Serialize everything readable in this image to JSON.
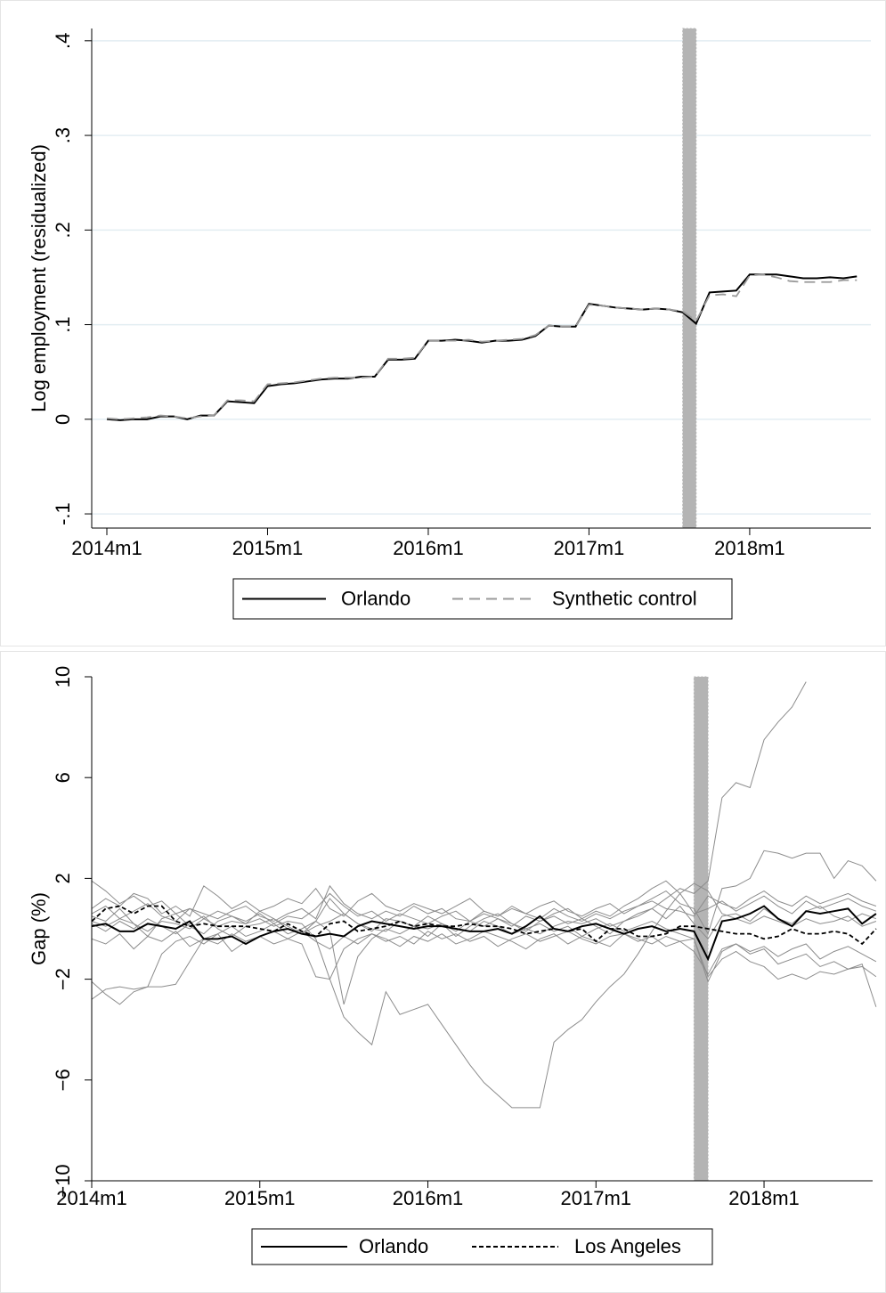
{
  "chart_data": [
    {
      "type": "line",
      "y_label": "Log employment (residualized)",
      "categories": [
        "2014m1",
        "2014m2",
        "2014m3",
        "2014m4",
        "2014m5",
        "2014m6",
        "2014m7",
        "2014m8",
        "2014m9",
        "2014m10",
        "2014m11",
        "2014m12",
        "2015m1",
        "2015m2",
        "2015m3",
        "2015m4",
        "2015m5",
        "2015m6",
        "2015m7",
        "2015m8",
        "2015m9",
        "2015m10",
        "2015m11",
        "2015m12",
        "2016m1",
        "2016m2",
        "2016m3",
        "2016m4",
        "2016m5",
        "2016m6",
        "2016m7",
        "2016m8",
        "2016m9",
        "2016m10",
        "2016m11",
        "2016m12",
        "2017m1",
        "2017m2",
        "2017m3",
        "2017m4",
        "2017m5",
        "2017m6",
        "2017m7",
        "2017m8",
        "2017m9",
        "2017m10",
        "2017m11",
        "2017m12",
        "2018m1",
        "2018m2",
        "2018m3",
        "2018m4",
        "2018m5",
        "2018m6",
        "2018m7",
        "2018m8",
        "2018m9"
      ],
      "series": [
        {
          "name": "Orlando",
          "color": "#000000",
          "style": "solid",
          "values": [
            0.0,
            -0.001,
            0.0,
            0.0,
            0.003,
            0.003,
            0.0,
            0.004,
            0.004,
            0.019,
            0.018,
            0.017,
            0.035,
            0.037,
            0.038,
            0.04,
            0.042,
            0.043,
            0.043,
            0.045,
            0.045,
            0.063,
            0.063,
            0.064,
            0.083,
            0.083,
            0.084,
            0.083,
            0.081,
            0.083,
            0.083,
            0.084,
            0.088,
            0.099,
            0.098,
            0.098,
            0.122,
            0.12,
            0.118,
            0.117,
            0.116,
            0.117,
            0.116,
            0.113,
            0.101,
            0.134,
            0.135,
            0.136,
            0.153,
            0.153,
            0.153,
            0.151,
            0.149,
            0.149,
            0.15,
            0.149,
            0.151
          ]
        },
        {
          "name": "Synthetic control",
          "color": "#999999",
          "style": "dashed",
          "values": [
            0.001,
            0.0,
            0.001,
            0.002,
            0.004,
            0.003,
            0.001,
            0.003,
            0.004,
            0.02,
            0.02,
            0.019,
            0.037,
            0.038,
            0.039,
            0.041,
            0.043,
            0.044,
            0.044,
            0.044,
            0.045,
            0.064,
            0.064,
            0.065,
            0.083,
            0.083,
            0.083,
            0.084,
            0.082,
            0.083,
            0.084,
            0.085,
            0.089,
            0.099,
            0.098,
            0.098,
            0.121,
            0.12,
            0.118,
            0.117,
            0.116,
            0.117,
            0.116,
            0.114,
            0.104,
            0.131,
            0.132,
            0.13,
            0.152,
            0.153,
            0.15,
            0.146,
            0.145,
            0.145,
            0.145,
            0.147,
            0.147
          ]
        }
      ],
      "highlight": [
        "2017m8",
        "2017m9"
      ],
      "highlight_color": "#b4b4b4",
      "ylim": [
        -0.115,
        0.413
      ],
      "yticks": [
        {
          "value": -0.1,
          "label": "-.1"
        },
        0,
        {
          "value": 0.1,
          "label": ".1"
        },
        {
          "value": 0.2,
          "label": ".2"
        },
        {
          "value": 0.3,
          "label": ".3"
        },
        {
          "value": 0.4,
          "label": ".4"
        }
      ],
      "xticks": [
        "2014m1",
        "2015m1",
        "2016m1",
        "2017m1",
        "2018m1"
      ],
      "grid": true
    },
    {
      "type": "line",
      "y_label": "Gap (%)",
      "categories": [
        "2014m1",
        "2014m2",
        "2014m3",
        "2014m4",
        "2014m5",
        "2014m6",
        "2014m7",
        "2014m8",
        "2014m9",
        "2014m10",
        "2014m11",
        "2014m12",
        "2015m1",
        "2015m2",
        "2015m3",
        "2015m4",
        "2015m5",
        "2015m6",
        "2015m7",
        "2015m8",
        "2015m9",
        "2015m10",
        "2015m11",
        "2015m12",
        "2016m1",
        "2016m2",
        "2016m3",
        "2016m4",
        "2016m5",
        "2016m6",
        "2016m7",
        "2016m8",
        "2016m9",
        "2016m10",
        "2016m11",
        "2016m12",
        "2017m1",
        "2017m2",
        "2017m3",
        "2017m4",
        "2017m5",
        "2017m6",
        "2017m7",
        "2017m8",
        "2017m9",
        "2017m10",
        "2017m11",
        "2017m12",
        "2018m1",
        "2018m2",
        "2018m3",
        "2018m4",
        "2018m5",
        "2018m6",
        "2018m7",
        "2018m8",
        "2018m9"
      ],
      "placebo_color": "#8c8c8c",
      "placebos": [
        {
          "values": [
            0.5,
            0.3,
            0.8,
            0.2,
            -0.3,
            0.4,
            0.6,
            0.1,
            -0.2,
            0.3,
            0.5,
            0.2,
            0.7,
            0.4,
            0.1,
            -0.2,
            0.3,
            1.2,
            0.6,
            0.2,
            -0.1,
            0.4,
            0.3,
            0.1,
            0.5,
            0.2,
            -0.3,
            0.1,
            0.4,
            0.6,
            0.2,
            -0.1,
            0.3,
            0.5,
            0.2,
            0.4,
            0.1,
            -0.2,
            0.3,
            0.6,
            0.8,
            0.4,
            0.9,
            0.2,
            -0.4,
            0.5,
            0.6,
            0.3,
            0.8,
            0.4,
            0.2,
            0.7,
            0.9,
            0.5,
            0.3,
            0.6,
            0.4
          ]
        },
        {
          "values": [
            -0.4,
            -0.6,
            -0.2,
            -0.8,
            -0.3,
            -0.5,
            -0.1,
            -0.7,
            -0.4,
            -0.2,
            -0.9,
            -0.5,
            -0.3,
            -0.6,
            -0.4,
            -0.1,
            -0.5,
            -0.8,
            -0.3,
            -0.6,
            -0.2,
            -0.4,
            -0.7,
            -0.3,
            -0.5,
            -0.2,
            -0.6,
            -0.4,
            -0.1,
            -0.3,
            -0.5,
            -0.8,
            -0.4,
            -0.2,
            -0.6,
            -0.3,
            -0.5,
            -0.7,
            -0.2,
            -0.4,
            -0.6,
            -0.3,
            -0.5,
            -0.9,
            -1.8,
            -0.8,
            -0.6,
            -0.9,
            -0.7,
            -1.1,
            -0.8,
            -0.6,
            -1.2,
            -0.9,
            -0.7,
            -1.0,
            -1.3
          ]
        },
        {
          "values": [
            1.9,
            1.5,
            1.0,
            1.3,
            0.9,
            1.1,
            0.6,
            0.8,
            0.4,
            0.7,
            0.5,
            0.3,
            0.6,
            0.2,
            0.5,
            0.4,
            0.8,
            1.4,
            0.9,
            0.5,
            0.7,
            0.3,
            0.6,
            0.4,
            0.2,
            0.5,
            0.7,
            0.3,
            0.6,
            0.4,
            0.1,
            0.5,
            0.3,
            0.6,
            0.8,
            0.4,
            0.7,
            0.5,
            0.9,
            1.2,
            1.6,
            1.9,
            1.4,
            0.6,
            0.8,
            1.1,
            0.7,
            1.0,
            1.3,
            0.9,
            0.6,
            1.1,
            0.8,
            1.0,
            1.2,
            0.9,
            0.7
          ]
        },
        {
          "values": [
            -2.8,
            -2.4,
            -2.3,
            -2.4,
            -2.3,
            -2.3,
            -2.2,
            -1.3,
            -0.4,
            -0.6,
            -0.2,
            -0.5,
            -0.3,
            -0.1,
            -0.4,
            -0.6,
            -1.9,
            -2.0,
            -0.8,
            -0.4,
            -0.2,
            -0.5,
            -0.3,
            -0.6,
            -0.1,
            -0.4,
            -0.2,
            -0.5,
            -0.3,
            -0.7,
            -0.4,
            -0.2,
            -0.5,
            -0.3,
            -0.1,
            -0.4,
            -0.6,
            -0.3,
            -0.2,
            -0.5,
            -0.3,
            -0.7,
            -0.5,
            -0.4,
            -2.1,
            -0.9,
            -0.6,
            -1.0,
            -0.8,
            -1.4,
            -1.2,
            -1.0,
            -1.5,
            -1.3,
            -1.6,
            -1.4,
            -3.1
          ]
        },
        {
          "values": [
            -2.1,
            -2.6,
            -3.0,
            -2.5,
            -2.3,
            -1.0,
            -0.5,
            -0.3,
            -0.6,
            -0.2,
            0.1,
            -0.3,
            -0.1,
            0.2,
            -0.2,
            0.0,
            0.3,
            -0.1,
            -3.0,
            -1.1,
            -0.4,
            0.0,
            -0.2,
            0.1,
            -0.3,
            0.2,
            0.0,
            -0.1,
            0.3,
            0.1,
            -0.2,
            0.0,
            0.2,
            -0.1,
            0.1,
            -0.3,
            0.0,
            0.2,
            -0.1,
            0.1,
            0.3,
            0.0,
            -0.2,
            -0.4,
            -1.9,
            -1.2,
            -0.9,
            -1.3,
            -1.5,
            -2.0,
            -1.8,
            -2.0,
            -1.7,
            -1.8,
            -1.6,
            -1.5,
            -1.9
          ]
        },
        {
          "values": [
            0.8,
            1.2,
            0.9,
            1.4,
            1.2,
            0.6,
            0.9,
            0.5,
            1.7,
            1.3,
            0.8,
            1.1,
            0.7,
            0.9,
            1.2,
            1.0,
            1.6,
            0.8,
            0.5,
            1.1,
            1.4,
            0.9,
            0.7,
            1.0,
            0.8,
            0.6,
            0.9,
            1.2,
            0.7,
            0.5,
            0.8,
            0.6,
            0.9,
            1.1,
            0.7,
            0.5,
            0.8,
            1.0,
            0.6,
            0.9,
            1.1,
            0.8,
            0.7,
            0.5,
            1.3,
            1.0,
            0.8,
            1.2,
            1.5,
            1.1,
            0.9,
            1.3,
            1.0,
            1.2,
            1.4,
            1.1,
            0.9
          ]
        },
        {
          "values": [
            0.3,
            0.1,
            0.4,
            0.2,
            -0.1,
            0.3,
            0.2,
            0.0,
            0.4,
            0.1,
            0.3,
            0.2,
            0.4,
            0.1,
            0.3,
            0.2,
            -0.4,
            -2.0,
            -3.5,
            -4.1,
            -4.6,
            -2.5,
            -3.4,
            -3.2,
            -3.0,
            -3.8,
            -4.6,
            -5.4,
            -6.1,
            -6.6,
            -7.1,
            -7.1,
            -7.1,
            -4.5,
            -4.0,
            -3.6,
            -2.9,
            -2.3,
            -1.8,
            -1.0,
            -0.1,
            0.7,
            1.4,
            1.8,
            1.5,
            0.6,
            0.4,
            0.2,
            0.5,
            0.3,
            0.1,
            0.4,
            0.2,
            0.3,
            0.5,
            0.1,
            0.3
          ]
        },
        {
          "values": [
            0.2,
            -0.1,
            0.3,
            0.0,
            0.4,
            0.1,
            -0.2,
            0.2,
            0.5,
            0.0,
            -0.3,
            0.1,
            0.2,
            0.4,
            0.0,
            -0.2,
            0.1,
            0.3,
            0.6,
            0.2,
            0.0,
            -0.1,
            0.3,
            0.1,
            0.0,
            0.2,
            -0.1,
            0.3,
            0.1,
            0.4,
            0.2,
            0.0,
            -0.2,
            0.1,
            0.3,
            0.2,
            0.4,
            0.1,
            0.3,
            0.5,
            0.8,
            1.2,
            1.6,
            1.4,
            1.9,
            5.2,
            5.8,
            5.6,
            7.5,
            8.2,
            8.8,
            9.8,
            null,
            null,
            null,
            null,
            null
          ]
        },
        {
          "values": [
            0.6,
            0.9,
            0.4,
            0.7,
            1.0,
            0.5,
            0.3,
            0.8,
            0.6,
            0.4,
            0.7,
            0.9,
            0.5,
            0.3,
            0.6,
            0.8,
            0.4,
            1.7,
            1.0,
            0.6,
            0.4,
            0.7,
            0.5,
            0.9,
            0.6,
            0.8,
            0.4,
            0.3,
            0.7,
            0.5,
            0.9,
            0.6,
            0.4,
            0.8,
            0.5,
            0.3,
            0.6,
            0.4,
            0.7,
            0.9,
            1.2,
            1.5,
            1.0,
            0.8,
            -0.2,
            1.6,
            1.7,
            2.0,
            3.1,
            3.0,
            2.8,
            3.0,
            3.0,
            2.0,
            2.7,
            2.5,
            1.9
          ]
        }
      ],
      "series": [
        {
          "name": "Orlando",
          "color": "#000000",
          "style": "solid",
          "values": [
            0.1,
            0.2,
            -0.1,
            -0.1,
            0.2,
            0.1,
            0.0,
            0.3,
            -0.4,
            -0.4,
            -0.3,
            -0.6,
            -0.3,
            -0.1,
            0.0,
            -0.2,
            -0.3,
            -0.2,
            -0.3,
            0.1,
            0.3,
            0.2,
            0.1,
            0.0,
            0.1,
            0.1,
            0.0,
            -0.1,
            -0.1,
            0.0,
            -0.2,
            0.1,
            0.5,
            0.0,
            -0.1,
            0.1,
            0.2,
            0.0,
            -0.2,
            0.0,
            0.1,
            -0.1,
            0.0,
            -0.1,
            -1.2,
            0.3,
            0.4,
            0.6,
            0.9,
            0.4,
            0.1,
            0.7,
            0.6,
            0.7,
            0.8,
            0.2,
            0.6
          ]
        },
        {
          "name": "Los Angeles",
          "color": "#000000",
          "style": "dotted",
          "values": [
            0.3,
            0.8,
            0.9,
            0.6,
            0.9,
            0.9,
            0.3,
            0.1,
            0.2,
            0.1,
            0.1,
            0.1,
            0.0,
            -0.1,
            0.2,
            -0.1,
            -0.3,
            0.2,
            0.3,
            -0.1,
            0.0,
            0.1,
            0.3,
            0.1,
            0.2,
            0.1,
            0.1,
            0.2,
            0.1,
            0.1,
            0.0,
            -0.2,
            -0.1,
            0.0,
            -0.1,
            0.0,
            -0.5,
            0.0,
            0.0,
            -0.3,
            -0.3,
            -0.2,
            0.1,
            0.1,
            0.0,
            -0.1,
            -0.2,
            -0.2,
            -0.4,
            -0.3,
            0.0,
            -0.2,
            -0.2,
            -0.1,
            -0.2,
            -0.6,
            0.0
          ]
        }
      ],
      "highlight": [
        "2017m8",
        "2017m9"
      ],
      "highlight_color": "#b4b4b4",
      "ylim": [
        -10,
        10
      ],
      "yticks": [
        {
          "value": -10,
          "label": "−10"
        },
        {
          "value": -6,
          "label": "−6"
        },
        {
          "value": -2,
          "label": "−2"
        },
        2,
        6,
        10
      ],
      "xticks": [
        "2014m1",
        "2015m1",
        "2016m1",
        "2017m1",
        "2018m1"
      ],
      "grid": false
    }
  ]
}
